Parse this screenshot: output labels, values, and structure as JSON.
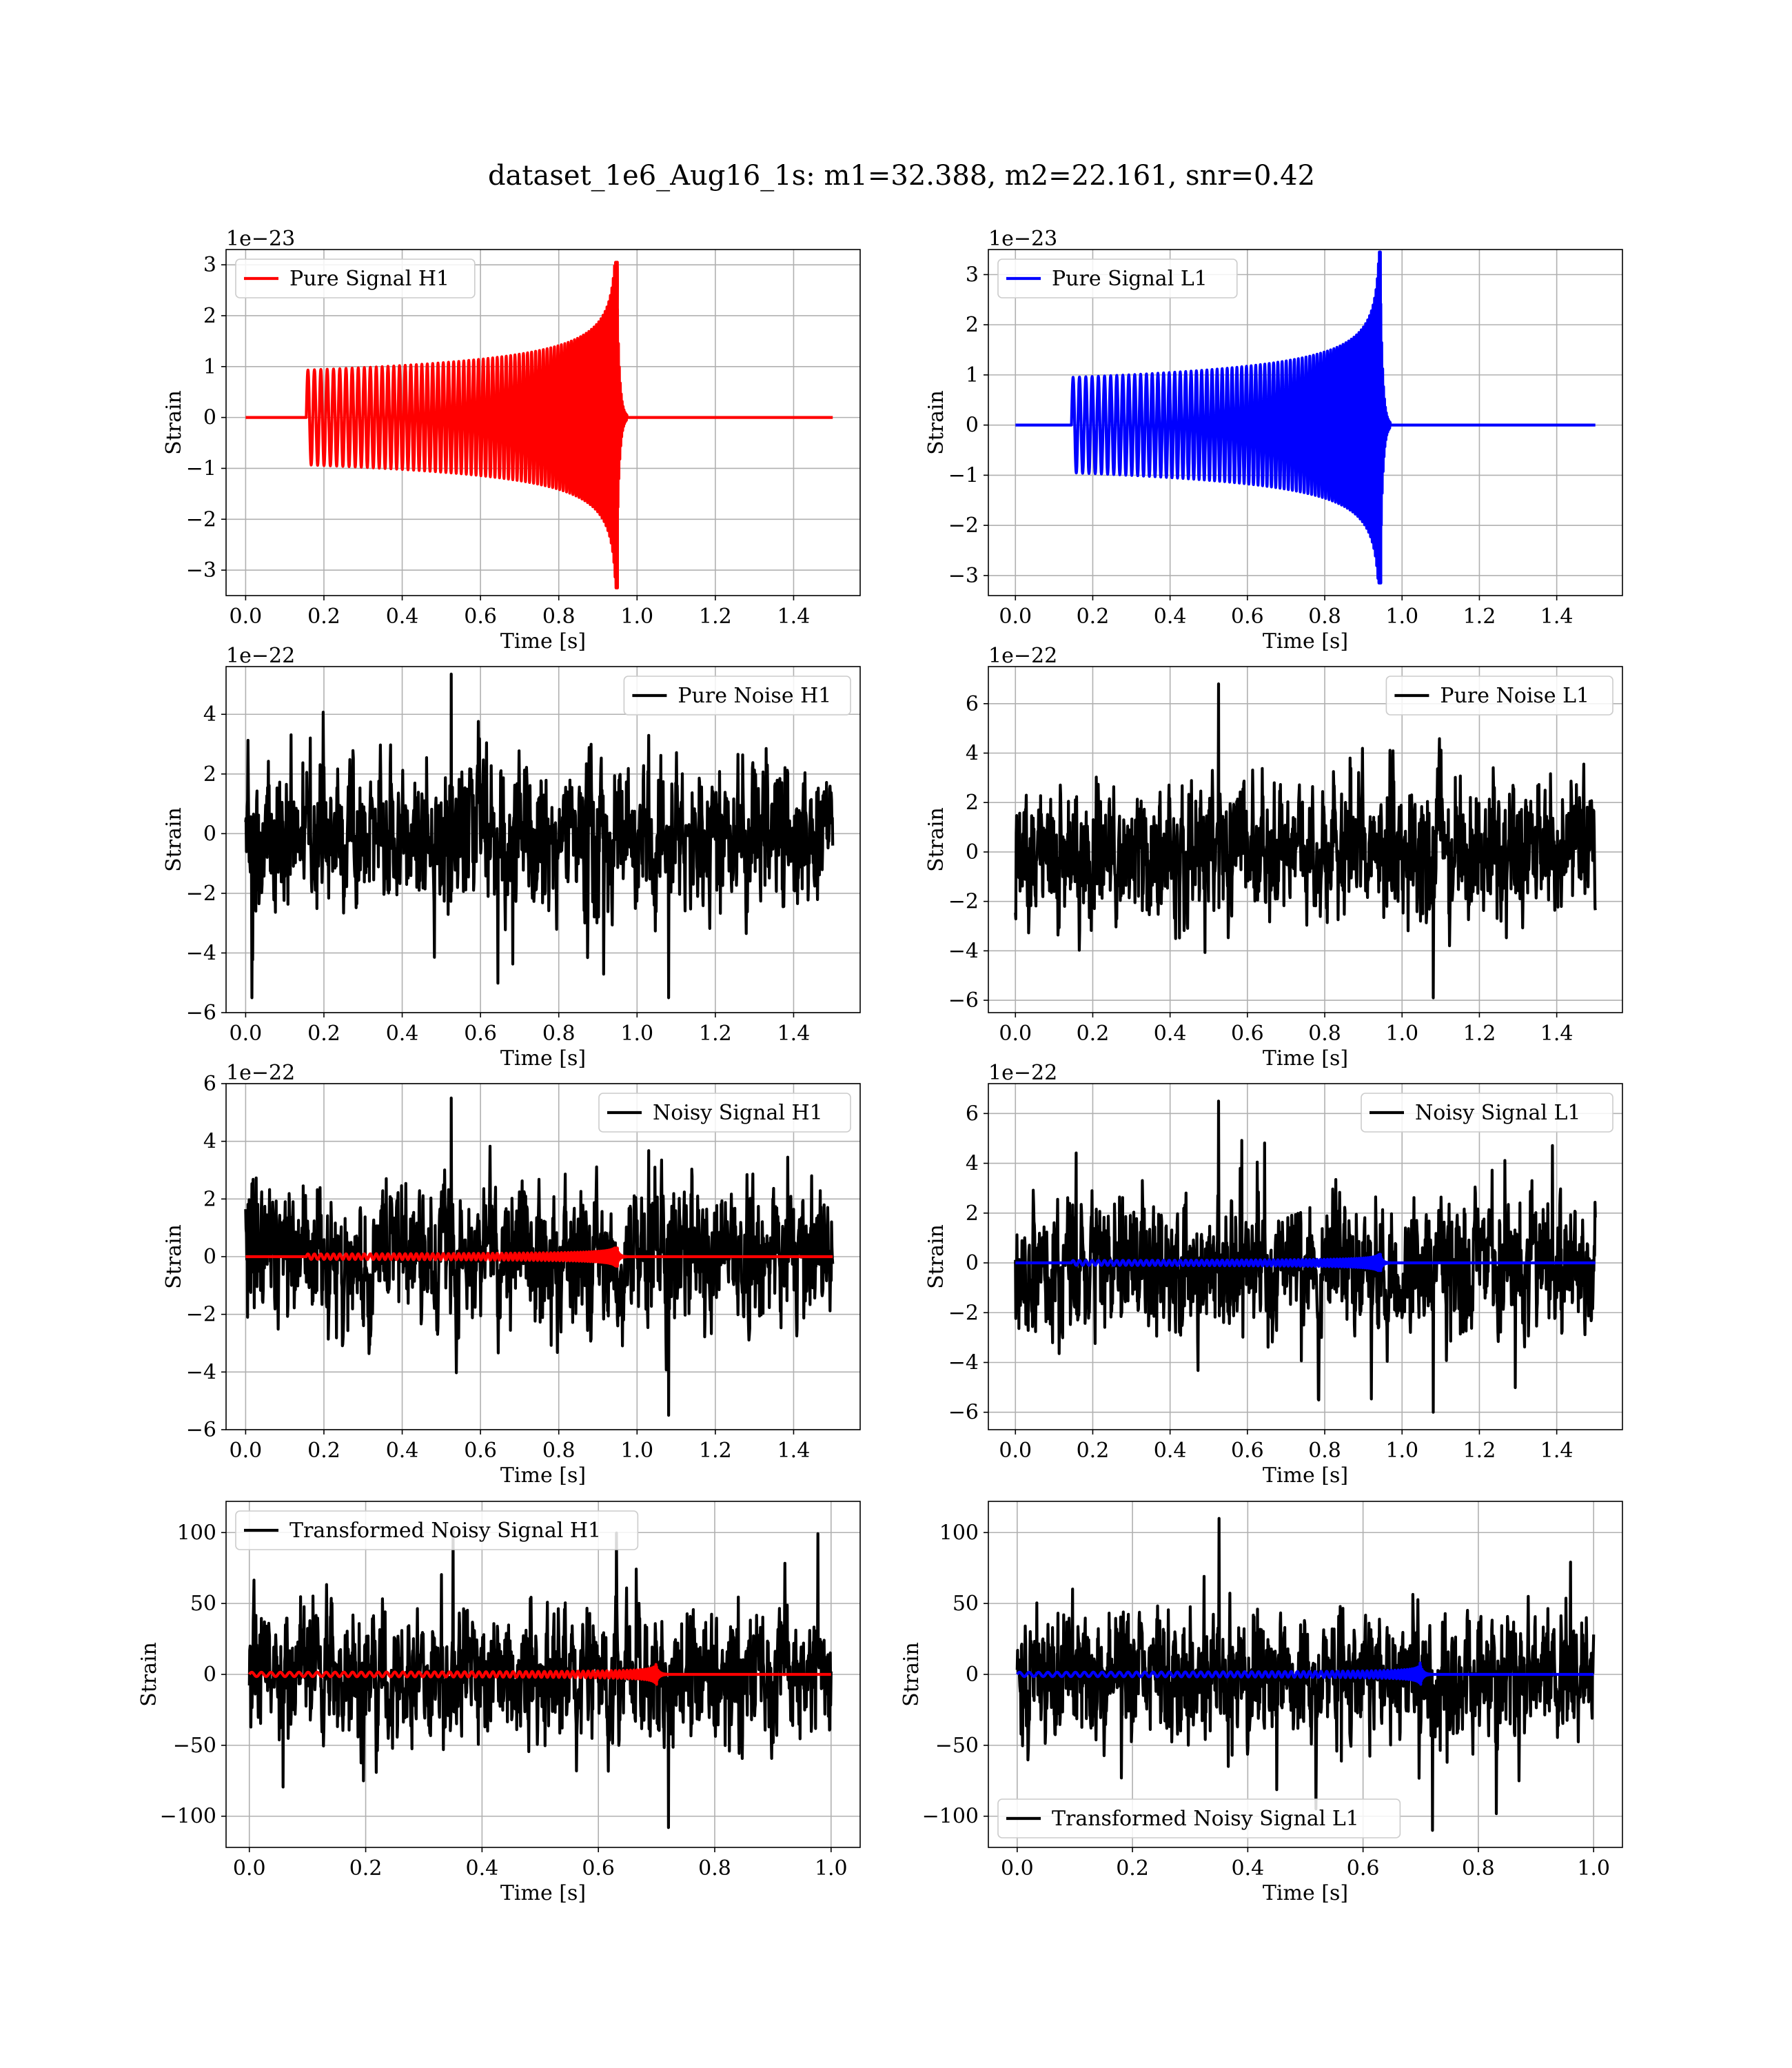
{
  "figure": {
    "title": "dataset_1e6_Aug16_1s: m1=32.388, m2=22.161, snr=0.42"
  },
  "chart_data": [
    {
      "id": "pure-signal-h1",
      "type": "line",
      "row": 0,
      "col": 0,
      "xlabel": "Time [s]",
      "ylabel": "Strain",
      "offset_text": "1e−23",
      "xlim": [
        -0.05,
        1.57
      ],
      "ylim": [
        -3.5,
        3.3
      ],
      "xticks": [
        0.0,
        0.2,
        0.4,
        0.6,
        0.8,
        1.0,
        1.2,
        1.4
      ],
      "xtick_labels": [
        "0.0",
        "0.2",
        "0.4",
        "0.6",
        "0.8",
        "1.0",
        "1.2",
        "1.4"
      ],
      "yticks": [
        -3,
        -2,
        -1,
        0,
        1,
        2,
        3
      ],
      "ytick_labels": [
        "−3",
        "−2",
        "−1",
        "0",
        "1",
        "2",
        "3"
      ],
      "grid": true,
      "legend_position": "upper left",
      "series": [
        {
          "name": "Pure Signal H1",
          "color": "#ff0000",
          "kind": "chirp",
          "x_range": [
            0.0,
            1.5
          ],
          "t_start": 0.155,
          "t_merge": 0.95,
          "amp_start": 0.93,
          "amp_peak": 3.05,
          "amp_min": -3.35,
          "ringdown_end": 0.975,
          "show_in_legend": true
        }
      ]
    },
    {
      "id": "pure-signal-l1",
      "type": "line",
      "row": 0,
      "col": 1,
      "xlabel": "Time [s]",
      "ylabel": "Strain",
      "offset_text": "1e−23",
      "xlim": [
        -0.07,
        1.57
      ],
      "ylim": [
        -3.4,
        3.5
      ],
      "xticks": [
        0.0,
        0.2,
        0.4,
        0.6,
        0.8,
        1.0,
        1.2,
        1.4
      ],
      "xtick_labels": [
        "0.0",
        "0.2",
        "0.4",
        "0.6",
        "0.8",
        "1.0",
        "1.2",
        "1.4"
      ],
      "yticks": [
        -3,
        -2,
        -1,
        0,
        1,
        2,
        3
      ],
      "ytick_labels": [
        "−3",
        "−2",
        "−1",
        "0",
        "1",
        "2",
        "3"
      ],
      "grid": true,
      "legend_position": "upper left",
      "series": [
        {
          "name": "Pure Signal L1",
          "color": "#0000ff",
          "kind": "chirp",
          "x_range": [
            0.0,
            1.5
          ],
          "t_start": 0.145,
          "t_merge": 0.945,
          "amp_start": 0.95,
          "amp_peak": 3.45,
          "amp_min": -3.15,
          "ringdown_end": 0.97,
          "show_in_legend": true
        }
      ]
    },
    {
      "id": "pure-noise-h1",
      "type": "line",
      "row": 1,
      "col": 0,
      "xlabel": "Time [s]",
      "ylabel": "Strain",
      "offset_text": "1e−22",
      "xlim": [
        -0.05,
        1.57
      ],
      "ylim": [
        -6,
        5.6
      ],
      "xticks": [
        0.0,
        0.2,
        0.4,
        0.6,
        0.8,
        1.0,
        1.2,
        1.4
      ],
      "xtick_labels": [
        "0.0",
        "0.2",
        "0.4",
        "0.6",
        "0.8",
        "1.0",
        "1.2",
        "1.4"
      ],
      "yticks": [
        -6,
        -4,
        -2,
        0,
        2,
        4
      ],
      "ytick_labels": [
        "−6",
        "−4",
        "−2",
        "0",
        "2",
        "4"
      ],
      "grid": true,
      "legend_position": "upper right",
      "series": [
        {
          "name": "Pure Noise H1",
          "color": "#000000",
          "kind": "noise",
          "x_range": [
            0.0,
            1.5
          ],
          "sigma": 1.45,
          "y_max": 5.35,
          "y_min": -5.5,
          "seed": 11,
          "show_in_legend": true
        }
      ]
    },
    {
      "id": "pure-noise-l1",
      "type": "line",
      "row": 1,
      "col": 1,
      "xlabel": "Time [s]",
      "ylabel": "Strain",
      "offset_text": "1e−22",
      "xlim": [
        -0.07,
        1.57
      ],
      "ylim": [
        -6.5,
        7.5
      ],
      "xticks": [
        0.0,
        0.2,
        0.4,
        0.6,
        0.8,
        1.0,
        1.2,
        1.4
      ],
      "xtick_labels": [
        "0.0",
        "0.2",
        "0.4",
        "0.6",
        "0.8",
        "1.0",
        "1.2",
        "1.4"
      ],
      "yticks": [
        -6,
        -4,
        -2,
        0,
        2,
        4,
        6
      ],
      "ytick_labels": [
        "−6",
        "−4",
        "−2",
        "0",
        "2",
        "4",
        "6"
      ],
      "grid": true,
      "legend_position": "upper right",
      "series": [
        {
          "name": "Pure Noise L1",
          "color": "#000000",
          "kind": "noise",
          "x_range": [
            0.0,
            1.5
          ],
          "sigma": 1.6,
          "y_max": 6.8,
          "y_min": -5.9,
          "seed": 23,
          "show_in_legend": true
        }
      ]
    },
    {
      "id": "noisy-signal-h1",
      "type": "line",
      "row": 2,
      "col": 0,
      "xlabel": "Time [s]",
      "ylabel": "Strain",
      "offset_text": "1e−22",
      "xlim": [
        -0.05,
        1.57
      ],
      "ylim": [
        -6,
        6
      ],
      "xticks": [
        0.0,
        0.2,
        0.4,
        0.6,
        0.8,
        1.0,
        1.2,
        1.4
      ],
      "xtick_labels": [
        "0.0",
        "0.2",
        "0.4",
        "0.6",
        "0.8",
        "1.0",
        "1.2",
        "1.4"
      ],
      "yticks": [
        -6,
        -4,
        -2,
        0,
        2,
        4,
        6
      ],
      "ytick_labels": [
        "−6",
        "−4",
        "−2",
        "0",
        "2",
        "4",
        "6"
      ],
      "grid": true,
      "legend_position": "upper right",
      "series": [
        {
          "name": "Noisy Signal H1",
          "color": "#000000",
          "kind": "noise",
          "x_range": [
            0.0,
            1.5
          ],
          "sigma": 1.45,
          "y_max": 5.5,
          "y_min": -5.5,
          "seed": 37,
          "show_in_legend": true
        },
        {
          "name": "",
          "color": "#ff0000",
          "kind": "chirp",
          "x_range": [
            0.0,
            1.5
          ],
          "t_start": 0.155,
          "t_merge": 0.95,
          "amp_start": 0.093,
          "amp_peak": 0.3,
          "amp_min": -0.33,
          "ringdown_end": 0.975,
          "show_in_legend": false
        }
      ]
    },
    {
      "id": "noisy-signal-l1",
      "type": "line",
      "row": 2,
      "col": 1,
      "xlabel": "Time [s]",
      "ylabel": "Strain",
      "offset_text": "1e−22",
      "xlim": [
        -0.07,
        1.57
      ],
      "ylim": [
        -6.7,
        7.2
      ],
      "xticks": [
        0.0,
        0.2,
        0.4,
        0.6,
        0.8,
        1.0,
        1.2,
        1.4
      ],
      "xtick_labels": [
        "0.0",
        "0.2",
        "0.4",
        "0.6",
        "0.8",
        "1.0",
        "1.2",
        "1.4"
      ],
      "yticks": [
        -6,
        -4,
        -2,
        0,
        2,
        4,
        6
      ],
      "ytick_labels": [
        "−6",
        "−4",
        "−2",
        "0",
        "2",
        "4",
        "6"
      ],
      "grid": true,
      "legend_position": "upper right",
      "series": [
        {
          "name": "Noisy Signal L1",
          "color": "#000000",
          "kind": "noise",
          "x_range": [
            0.0,
            1.5
          ],
          "sigma": 1.6,
          "y_max": 6.5,
          "y_min": -6.0,
          "seed": 53,
          "show_in_legend": true
        },
        {
          "name": "",
          "color": "#0000ff",
          "kind": "chirp",
          "x_range": [
            0.0,
            1.5
          ],
          "t_start": 0.145,
          "t_merge": 0.945,
          "amp_start": 0.095,
          "amp_peak": 0.34,
          "amp_min": -0.31,
          "ringdown_end": 0.97,
          "show_in_legend": false
        }
      ]
    },
    {
      "id": "transformed-noisy-signal-h1",
      "type": "line",
      "row": 3,
      "col": 0,
      "xlabel": "Time [s]",
      "ylabel": "Strain",
      "offset_text": "",
      "xlim": [
        -0.04,
        1.05
      ],
      "ylim": [
        -122,
        122
      ],
      "xticks": [
        0.0,
        0.2,
        0.4,
        0.6,
        0.8,
        1.0
      ],
      "xtick_labels": [
        "0.0",
        "0.2",
        "0.4",
        "0.6",
        "0.8",
        "1.0"
      ],
      "yticks": [
        -100,
        -50,
        0,
        50,
        100
      ],
      "ytick_labels": [
        "−100",
        "−50",
        "0",
        "50",
        "100"
      ],
      "grid": true,
      "legend_position": "upper left",
      "series": [
        {
          "name": "Transformed Noisy Signal H1",
          "color": "#000000",
          "kind": "noise",
          "x_range": [
            0.0,
            1.0
          ],
          "sigma": 27,
          "y_max": 103,
          "y_min": -108,
          "seed": 71,
          "show_in_legend": true
        },
        {
          "name": "",
          "color": "#ff0000",
          "kind": "chirp",
          "x_range": [
            0.0,
            1.0
          ],
          "t_start": 0.0,
          "t_merge": 0.7,
          "amp_start": 1.5,
          "amp_peak": 7,
          "amp_min": -7,
          "ringdown_end": 0.72,
          "show_in_legend": false
        }
      ]
    },
    {
      "id": "transformed-noisy-signal-l1",
      "type": "line",
      "row": 3,
      "col": 1,
      "xlabel": "Time [s]",
      "ylabel": "Strain",
      "offset_text": "",
      "xlim": [
        -0.05,
        1.05
      ],
      "ylim": [
        -122,
        122
      ],
      "xticks": [
        0.0,
        0.2,
        0.4,
        0.6,
        0.8,
        1.0
      ],
      "xtick_labels": [
        "0.0",
        "0.2",
        "0.4",
        "0.6",
        "0.8",
        "1.0"
      ],
      "yticks": [
        -100,
        -50,
        0,
        50,
        100
      ],
      "ytick_labels": [
        "−100",
        "−50",
        "0",
        "50",
        "100"
      ],
      "grid": true,
      "legend_position": "lower left",
      "series": [
        {
          "name": "Transformed Noisy Signal L1",
          "color": "#000000",
          "kind": "noise",
          "x_range": [
            0.0,
            1.0
          ],
          "sigma": 27,
          "y_max": 110,
          "y_min": -110,
          "seed": 89,
          "show_in_legend": true
        },
        {
          "name": "",
          "color": "#0000ff",
          "kind": "chirp",
          "x_range": [
            0.0,
            1.0
          ],
          "t_start": 0.0,
          "t_merge": 0.7,
          "amp_start": 1.5,
          "amp_peak": 8,
          "amp_min": -7,
          "ringdown_end": 0.72,
          "show_in_legend": false
        }
      ]
    }
  ]
}
